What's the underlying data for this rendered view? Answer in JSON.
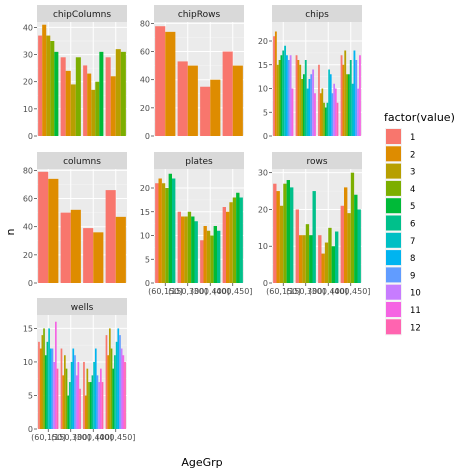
{
  "chart_data": {
    "type": "bar",
    "layout": "facet-wrap",
    "position": "dodge",
    "xlabel": "AgeGrp",
    "ylabel": "n",
    "legend": {
      "title": "factor(value)",
      "placement": "right"
    },
    "categories": [
      "(60,150]",
      "(150,300]",
      "(300,400]",
      "(400,450]"
    ],
    "fill_levels": [
      "1",
      "2",
      "3",
      "4",
      "5",
      "6",
      "7",
      "8",
      "9",
      "10",
      "11",
      "12"
    ],
    "colors": [
      "#F8766D",
      "#DE8C00",
      "#B79F00",
      "#7CAE00",
      "#00BA38",
      "#00C08B",
      "#00BFC4",
      "#00B4F0",
      "#619CFF",
      "#C77CFF",
      "#F564E3",
      "#FF64B0"
    ],
    "panel_background": "#ebebeb",
    "strip_background": "#d9d9d9",
    "grid": true,
    "panels": [
      {
        "title": "chipColumns",
        "ylim": [
          0,
          42
        ],
        "yticks": [
          0,
          10,
          20,
          30,
          40
        ],
        "values": [
          [
            37,
            41,
            37,
            35,
            31
          ],
          [
            29,
            24,
            19,
            29
          ],
          [
            26,
            23,
            17,
            20,
            31
          ],
          [
            29,
            22,
            32,
            31
          ]
        ]
      },
      {
        "title": "chipRows",
        "ylim": [
          0,
          81
        ],
        "yticks": [
          0,
          20,
          40,
          60,
          80
        ],
        "values": [
          [
            78,
            74
          ],
          [
            53,
            50
          ],
          [
            35,
            40
          ],
          [
            60,
            50
          ]
        ]
      },
      {
        "title": "chips",
        "ylim": [
          0,
          24
        ],
        "yticks": [
          0,
          5,
          10,
          15,
          20
        ],
        "values": [
          [
            21,
            22,
            15,
            16,
            17,
            18,
            19,
            17,
            16,
            17,
            10
          ],
          [
            17,
            16,
            15,
            12,
            13,
            16,
            10,
            12,
            13,
            14,
            9
          ],
          [
            15,
            9,
            10,
            7,
            6,
            7,
            14,
            13,
            9,
            11,
            10,
            7
          ],
          [
            17,
            15,
            18,
            13,
            13,
            16,
            11,
            18,
            16,
            10,
            17
          ]
        ]
      },
      {
        "title": "columns",
        "ylim": [
          0,
          81
        ],
        "yticks": [
          0,
          20,
          40,
          60,
          80
        ],
        "values": [
          [
            79,
            74
          ],
          [
            50,
            52
          ],
          [
            39,
            36
          ],
          [
            66,
            47
          ]
        ]
      },
      {
        "title": "plates",
        "ylim": [
          0,
          24
        ],
        "yticks": [
          0,
          5,
          10,
          15,
          20
        ],
        "values": [
          [
            21,
            22,
            21,
            20,
            23,
            22
          ],
          [
            15,
            14,
            14,
            15,
            14,
            13
          ],
          [
            9,
            12,
            11,
            10,
            12,
            11
          ],
          [
            16,
            15,
            17,
            18,
            19,
            18
          ]
        ]
      },
      {
        "title": "rows",
        "ylim": [
          0,
          31
        ],
        "yticks": [
          0,
          10,
          20,
          30
        ],
        "values": [
          [
            27,
            25,
            21,
            27,
            28,
            26
          ],
          [
            20,
            13,
            13,
            16,
            13,
            25
          ],
          [
            13,
            8,
            11,
            15,
            10,
            14
          ],
          [
            21,
            26,
            19,
            30,
            24,
            20
          ]
        ]
      },
      {
        "title": "wells",
        "ylim": [
          0,
          17
        ],
        "yticks": [
          0,
          5,
          10,
          15
        ],
        "values": [
          [
            13,
            12,
            14,
            15,
            11,
            13,
            15,
            12,
            12,
            10,
            16,
            9
          ],
          [
            12,
            8,
            11,
            9,
            5,
            7,
            10,
            12,
            11,
            8,
            10,
            6
          ],
          [
            10,
            5,
            9,
            7,
            7,
            8,
            10,
            12,
            8,
            7,
            9,
            7
          ],
          [
            14,
            11,
            15,
            12,
            9,
            11,
            13,
            15,
            14,
            12,
            11,
            10
          ]
        ]
      }
    ]
  }
}
